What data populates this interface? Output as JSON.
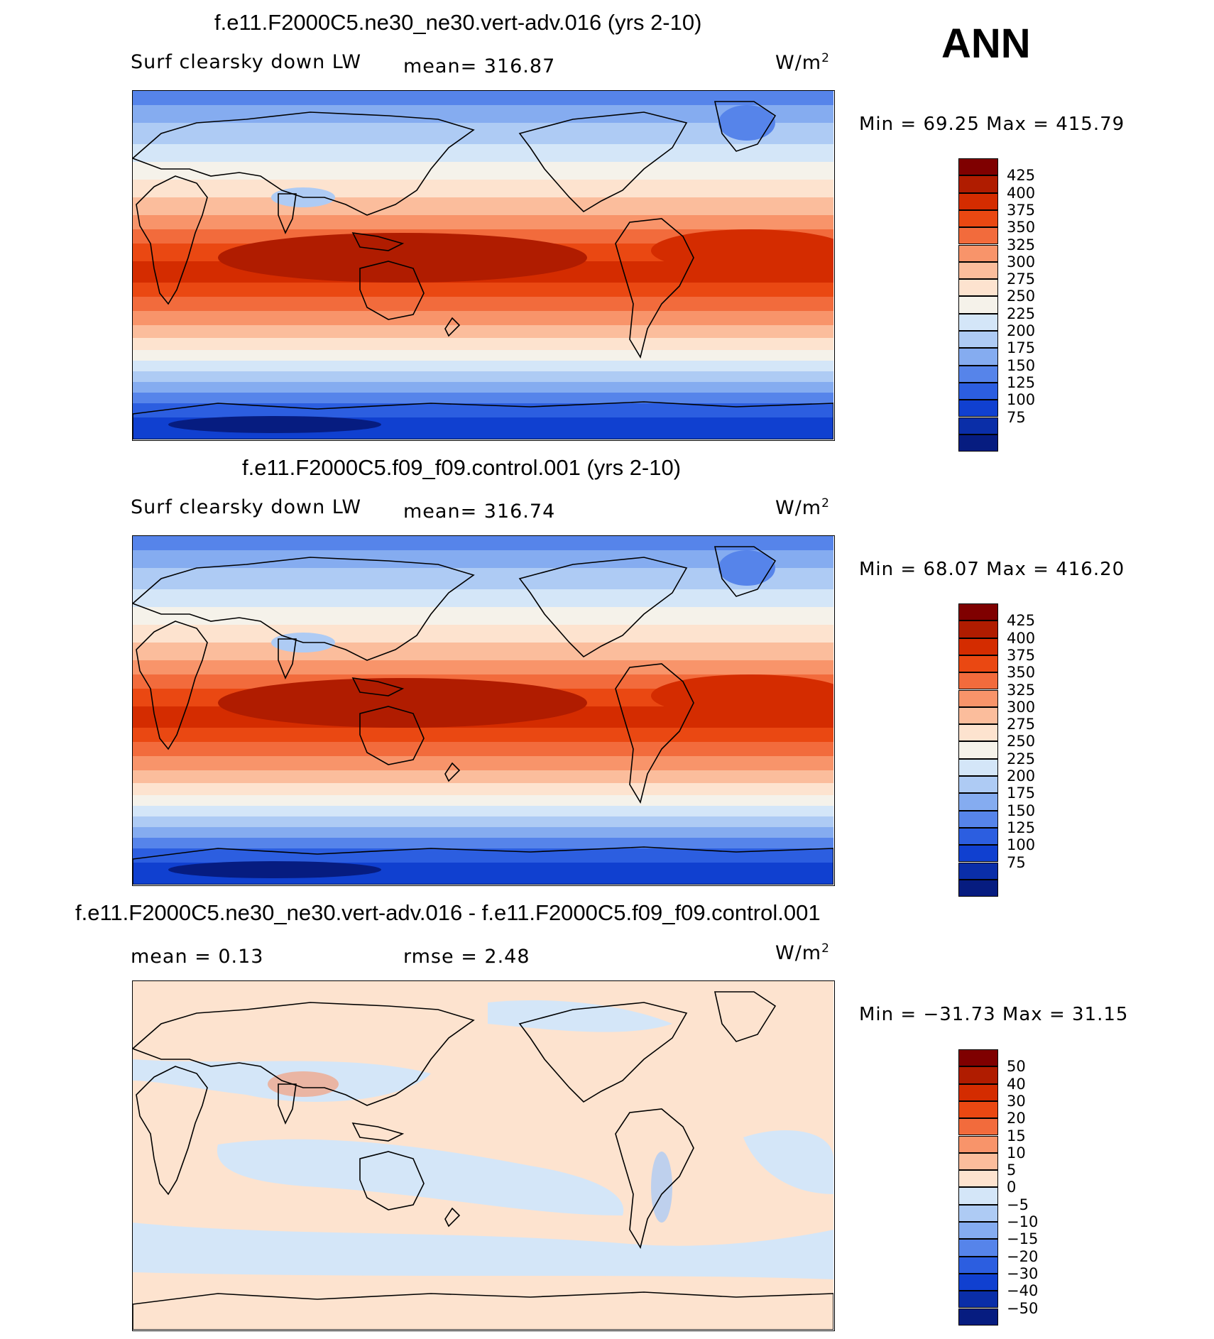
{
  "season": "ANN",
  "units_base": "W/m",
  "units_exp": "2",
  "panels": [
    {
      "title": "f.e11.F2000C5.ne30_ne30.vert-adv.016 (yrs 2-10)",
      "variable": "Surf clearsky down LW",
      "stat_left": "mean= 316.87",
      "stat_right": "",
      "minmax": "Min =   69.25 Max = 415.79",
      "kind": "abs"
    },
    {
      "title": "f.e11.F2000C5.f09_f09.control.001 (yrs 2-10)",
      "variable": "Surf clearsky down LW",
      "stat_left": "mean= 316.74",
      "stat_right": "",
      "minmax": "Min =   68.07 Max = 416.20",
      "kind": "abs"
    },
    {
      "title": "f.e11.F2000C5.ne30_ne30.vert-adv.016 - f.e11.F2000C5.f09_f09.control.001",
      "variable": "mean =    0.13",
      "stat_left": "rmse =    2.48",
      "stat_right": "",
      "minmax": "Min = −31.73 Max =   31.15",
      "kind": "diff"
    }
  ],
  "colorbars": {
    "abs": {
      "labels": [
        "425",
        "400",
        "375",
        "350",
        "325",
        "300",
        "275",
        "250",
        "225",
        "200",
        "175",
        "150",
        "125",
        "100",
        "75"
      ],
      "colors": [
        "#7f0000",
        "#b01c00",
        "#d42c00",
        "#ea4812",
        "#f26b3c",
        "#f8946a",
        "#fbbd9c",
        "#fde3cf",
        "#f5f2ea",
        "#d4e6f8",
        "#aecbf4",
        "#85acf0",
        "#5684ea",
        "#2c5ee0",
        "#1040d0",
        "#0a2ea8",
        "#061c80"
      ]
    },
    "diff": {
      "labels": [
        "50",
        "40",
        "30",
        "20",
        "15",
        "10",
        "5",
        "0",
        "−5",
        "−10",
        "−15",
        "−20",
        "−30",
        "−40",
        "−50"
      ],
      "colors": [
        "#7f0000",
        "#b01c00",
        "#d42c00",
        "#ea4812",
        "#f26b3c",
        "#f8946a",
        "#fbbd9c",
        "#fde3cf",
        "#d4e6f8",
        "#aecbf4",
        "#85acf0",
        "#5684ea",
        "#2c5ee0",
        "#1040d0",
        "#0a2ea8",
        "#061c80"
      ]
    }
  },
  "chart_data": [
    {
      "type": "heatmap",
      "title": "f.e11.F2000C5.ne30_ne30.vert-adv.016 (yrs 2-10)",
      "variable": "Surf clearsky down LW",
      "units": "W/m2",
      "mean": 316.87,
      "min": 69.25,
      "max": 415.79,
      "levels": [
        75,
        100,
        125,
        150,
        175,
        200,
        225,
        250,
        275,
        300,
        325,
        350,
        375,
        400,
        425
      ],
      "zonal_pattern": {
        "latitude": [
          90,
          70,
          50,
          30,
          10,
          0,
          -10,
          -30,
          -50,
          -65,
          -80,
          -90
        ],
        "value_approx": [
          160,
          220,
          275,
          340,
          405,
          410,
          400,
          340,
          250,
          190,
          120,
          100
        ]
      }
    },
    {
      "type": "heatmap",
      "title": "f.e11.F2000C5.f09_f09.control.001 (yrs 2-10)",
      "variable": "Surf clearsky down LW",
      "units": "W/m2",
      "mean": 316.74,
      "min": 68.07,
      "max": 416.2,
      "levels": [
        75,
        100,
        125,
        150,
        175,
        200,
        225,
        250,
        275,
        300,
        325,
        350,
        375,
        400,
        425
      ],
      "zonal_pattern": {
        "latitude": [
          90,
          70,
          50,
          30,
          10,
          0,
          -10,
          -30,
          -50,
          -65,
          -80,
          -90
        ],
        "value_approx": [
          160,
          220,
          275,
          340,
          405,
          410,
          400,
          340,
          250,
          190,
          120,
          100
        ]
      }
    },
    {
      "type": "heatmap",
      "title": "f.e11.F2000C5.ne30_ne30.vert-adv.016 - f.e11.F2000C5.f09_f09.control.001",
      "units": "W/m2",
      "mean": 0.13,
      "rmse": 2.48,
      "min": -31.73,
      "max": 31.15,
      "levels": [
        -50,
        -40,
        -30,
        -20,
        -15,
        -10,
        -5,
        0,
        5,
        10,
        15,
        20,
        30,
        40,
        50
      ]
    }
  ]
}
